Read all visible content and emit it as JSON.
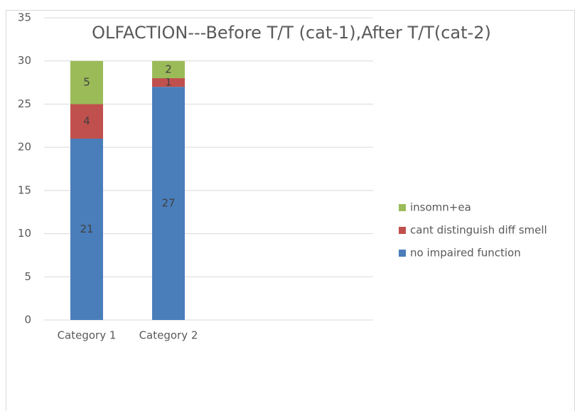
{
  "chart_data": {
    "type": "stacked_bar",
    "title": "OLFACTION---Before T/T (cat-1),After T/T(cat-2)",
    "categories": [
      "Category 1",
      "Category 2"
    ],
    "series": [
      {
        "name": "no impaired function",
        "color": "#4a7ebb",
        "values": [
          21,
          27
        ]
      },
      {
        "name": "cant distinguish diff smell",
        "color": "#c0504d",
        "values": [
          4,
          1
        ]
      },
      {
        "name": "insomn+ea",
        "color": "#9bbb59",
        "values": [
          5,
          2
        ]
      }
    ],
    "ylim": [
      0,
      35
    ],
    "yticks": [
      0,
      5,
      10,
      15,
      20,
      25,
      30,
      35
    ],
    "grid": true,
    "legend": "right"
  }
}
